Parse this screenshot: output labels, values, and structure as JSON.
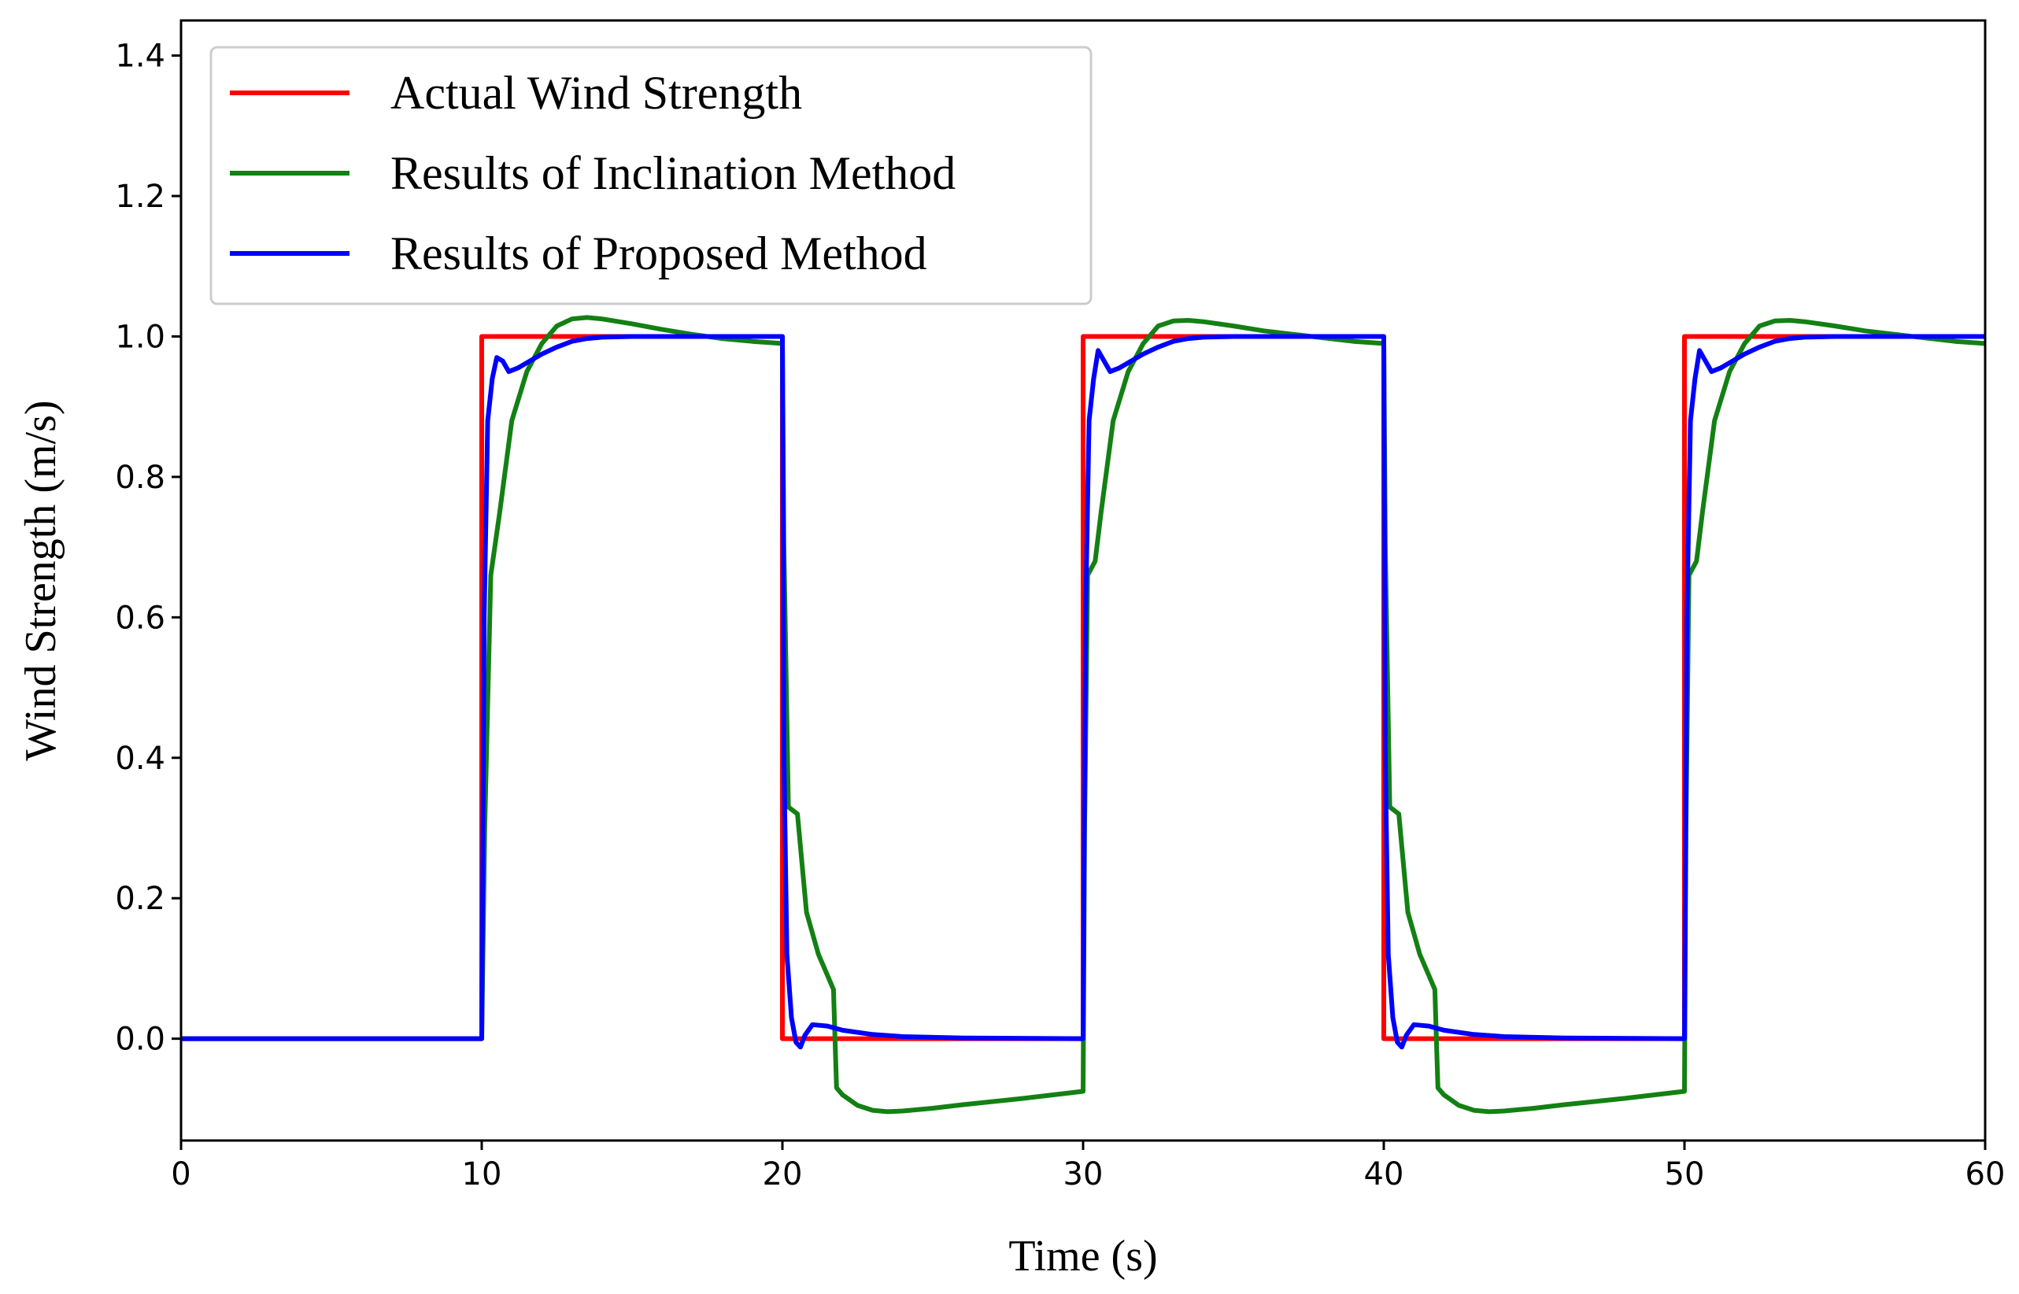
{
  "chart_data": {
    "type": "line",
    "title": "",
    "xlabel": "Time (s)",
    "ylabel": "Wind Strength (m/s)",
    "xlim": [
      0,
      60
    ],
    "ylim": [
      -0.145,
      1.45
    ],
    "xticks": [
      0,
      10,
      20,
      30,
      40,
      50,
      60
    ],
    "xtick_labels": [
      "0",
      "10",
      "20",
      "30",
      "40",
      "50",
      "60"
    ],
    "yticks": [
      0.0,
      0.2,
      0.4,
      0.6,
      0.8,
      1.0,
      1.2,
      1.4
    ],
    "ytick_labels": [
      "0.0",
      "0.2",
      "0.4",
      "0.6",
      "0.8",
      "1.0",
      "1.2",
      "1.4"
    ],
    "grid": false,
    "legend": {
      "position": "top-left"
    },
    "series": [
      {
        "name": "Actual Wind Strength",
        "color": "#ff0000",
        "x": [
          0,
          10,
          10,
          20,
          20,
          30,
          30,
          40,
          40,
          50,
          50,
          60
        ],
        "y": [
          0,
          0,
          1,
          1,
          0,
          0,
          1,
          1,
          0,
          0,
          1,
          1
        ]
      },
      {
        "name": "Results of Inclination Method",
        "color": "#138013",
        "x": [
          0,
          10,
          10.1,
          10.3,
          10.6,
          11.0,
          11.5,
          12.0,
          12.5,
          13.0,
          13.5,
          14.0,
          15.0,
          16.0,
          17.0,
          18.0,
          19.0,
          20.0,
          20.05,
          20.2,
          20.5,
          20.8,
          21.0,
          21.2,
          21.5,
          21.7,
          21.75,
          21.8,
          22.0,
          22.5,
          23.0,
          23.5,
          24.0,
          25.0,
          26.0,
          28.0,
          30.0,
          30.05,
          30.15,
          30.4,
          30.6,
          31.0,
          31.5,
          32.0,
          32.5,
          33.0,
          33.5,
          34.0,
          35.0,
          36.0,
          37.0,
          38.0,
          39.0,
          40.0,
          40.05,
          40.2,
          40.5,
          40.8,
          41.0,
          41.2,
          41.5,
          41.7,
          41.75,
          41.8,
          42.0,
          42.5,
          43.0,
          43.5,
          44.0,
          45.0,
          46.0,
          48.0,
          50.0,
          50.05,
          50.15,
          50.4,
          50.6,
          51.0,
          51.5,
          52.0,
          52.5,
          53.0,
          53.5,
          54.0,
          55.0,
          56.0,
          57.0,
          58.0,
          59.0,
          60.0
        ],
        "y": [
          0,
          0,
          0.3,
          0.66,
          0.75,
          0.88,
          0.95,
          0.99,
          1.015,
          1.025,
          1.027,
          1.025,
          1.018,
          1.01,
          1.003,
          0.997,
          0.993,
          0.99,
          0.7,
          0.33,
          0.32,
          0.18,
          0.15,
          0.12,
          0.09,
          0.07,
          0.0,
          -0.07,
          -0.08,
          -0.095,
          -0.102,
          -0.104,
          -0.103,
          -0.099,
          -0.094,
          -0.085,
          -0.075,
          0.3,
          0.66,
          0.68,
          0.75,
          0.88,
          0.95,
          0.99,
          1.015,
          1.022,
          1.023,
          1.021,
          1.015,
          1.008,
          1.003,
          0.998,
          0.993,
          0.99,
          0.7,
          0.33,
          0.32,
          0.18,
          0.15,
          0.12,
          0.09,
          0.07,
          0.0,
          -0.07,
          -0.08,
          -0.095,
          -0.102,
          -0.104,
          -0.103,
          -0.099,
          -0.094,
          -0.085,
          -0.075,
          0.3,
          0.66,
          0.68,
          0.75,
          0.88,
          0.95,
          0.99,
          1.015,
          1.022,
          1.023,
          1.021,
          1.015,
          1.008,
          1.003,
          0.998,
          0.993,
          0.99
        ]
      },
      {
        "name": "Results of Proposed Method",
        "color": "#0000ff",
        "x": [
          0,
          10,
          10.08,
          10.2,
          10.35,
          10.5,
          10.7,
          10.9,
          11.2,
          11.6,
          12.0,
          12.5,
          13.0,
          13.5,
          14.0,
          15.0,
          16.0,
          18.0,
          20.0,
          20.05,
          20.15,
          20.3,
          20.45,
          20.6,
          20.75,
          21.0,
          21.5,
          22.0,
          23.0,
          24.0,
          26.0,
          30.0,
          30.08,
          30.2,
          30.35,
          30.5,
          30.7,
          30.9,
          31.2,
          31.6,
          32.0,
          32.5,
          33.0,
          33.5,
          34.0,
          35.0,
          36.0,
          38.0,
          40.0,
          40.05,
          40.15,
          40.3,
          40.45,
          40.6,
          40.75,
          41.0,
          41.5,
          42.0,
          43.0,
          44.0,
          46.0,
          50.0,
          50.08,
          50.2,
          50.35,
          50.5,
          50.7,
          50.9,
          51.2,
          51.6,
          52.0,
          52.5,
          53.0,
          53.5,
          54.0,
          55.0,
          56.0,
          58.0,
          60.0
        ],
        "y": [
          0,
          0,
          0.6,
          0.88,
          0.94,
          0.97,
          0.965,
          0.95,
          0.955,
          0.965,
          0.975,
          0.985,
          0.993,
          0.997,
          0.999,
          1.0,
          1.0,
          1.0,
          1.0,
          0.4,
          0.12,
          0.03,
          -0.005,
          -0.012,
          0.005,
          0.02,
          0.018,
          0.012,
          0.006,
          0.003,
          0.001,
          0.0,
          0.6,
          0.88,
          0.94,
          0.98,
          0.965,
          0.95,
          0.955,
          0.965,
          0.975,
          0.985,
          0.993,
          0.997,
          0.999,
          1.0,
          1.0,
          1.0,
          1.0,
          0.4,
          0.12,
          0.03,
          -0.005,
          -0.012,
          0.005,
          0.02,
          0.018,
          0.012,
          0.006,
          0.003,
          0.001,
          0.0,
          0.6,
          0.88,
          0.94,
          0.98,
          0.965,
          0.95,
          0.955,
          0.965,
          0.975,
          0.985,
          0.993,
          0.997,
          0.999,
          1.0,
          1.0,
          1.0,
          1.0
        ]
      }
    ]
  }
}
